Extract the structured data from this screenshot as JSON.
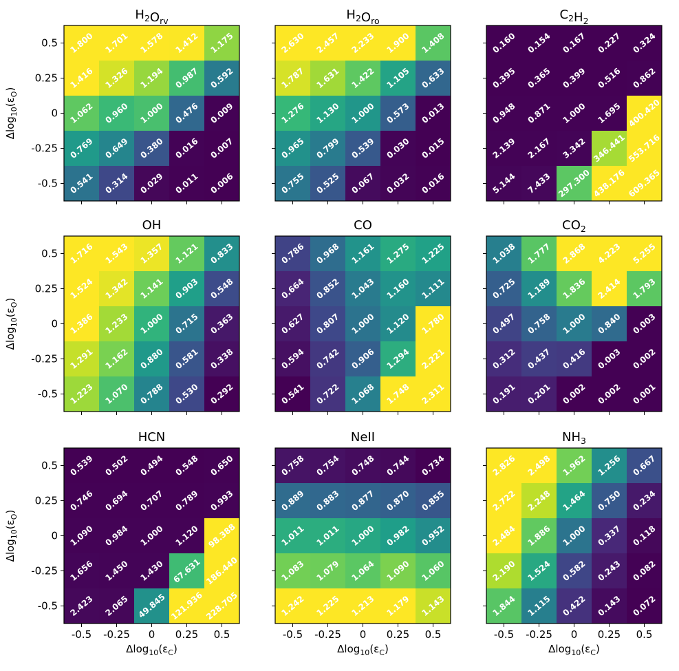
{
  "colormap": [
    "#440154",
    "#482878",
    "#3e4989",
    "#31688e",
    "#26828e",
    "#1f9e89",
    "#35b779",
    "#6ece58",
    "#b5de2b",
    "#fde725"
  ],
  "chart_data": [
    {
      "type": "heatmap",
      "title": {
        "base": "H",
        "sub1": "2",
        "mid": "O",
        "sub2": "rv"
      },
      "xlabel": "Δlog10(εC)",
      "ylabel": "Δlog10(εO)",
      "x_ticks": [
        "-0.5",
        "-0.25",
        "0",
        "0.25",
        "0.5"
      ],
      "y_ticks": [
        "0.5",
        "0.25",
        "0",
        "-0.25",
        "-0.5"
      ],
      "labels": [
        [
          "1.800",
          "1.701",
          "1.578",
          "1.412",
          "1.175"
        ],
        [
          "1.416",
          "1.326",
          "1.194",
          "0.987",
          "0.592"
        ],
        [
          "1.062",
          "0.960",
          "1.000",
          "0.476",
          "0.009"
        ],
        [
          "0.769",
          "0.649",
          "0.380",
          "0.016",
          "0.007"
        ],
        [
          "0.541",
          "0.314",
          "0.029",
          "0.011",
          "0.006"
        ]
      ]
    },
    {
      "type": "heatmap",
      "title": {
        "base": "H",
        "sub1": "2",
        "mid": "O",
        "sub2": "ro"
      },
      "xlabel": "Δlog10(εC)",
      "ylabel": "Δlog10(εO)",
      "x_ticks": [
        "-0.5",
        "-0.25",
        "0",
        "0.25",
        "0.5"
      ],
      "y_ticks": [
        "0.5",
        "0.25",
        "0",
        "-0.25",
        "-0.5"
      ],
      "labels": [
        [
          "2.630",
          "2.457",
          "2.233",
          "1.900",
          "1.408"
        ],
        [
          "1.787",
          "1.631",
          "1.422",
          "1.105",
          "0.633"
        ],
        [
          "1.276",
          "1.130",
          "1.000",
          "0.573",
          "0.013"
        ],
        [
          "0.965",
          "0.799",
          "0.539",
          "0.030",
          "0.015"
        ],
        [
          "0.755",
          "0.525",
          "0.067",
          "0.032",
          "0.016"
        ]
      ]
    },
    {
      "type": "heatmap",
      "title": {
        "base": "C",
        "sub1": "2",
        "mid": "H",
        "sub2": "2"
      },
      "xlabel": "Δlog10(εC)",
      "ylabel": "Δlog10(εO)",
      "x_ticks": [
        "-0.5",
        "-0.25",
        "0",
        "0.25",
        "0.5"
      ],
      "y_ticks": [
        "0.5",
        "0.25",
        "0",
        "-0.25",
        "-0.5"
      ],
      "labels": [
        [
          "0.160",
          "0.154",
          "0.167",
          "0.227",
          "0.324"
        ],
        [
          "0.395",
          "0.365",
          "0.399",
          "0.516",
          "0.862"
        ],
        [
          "0.948",
          "0.871",
          "1.000",
          "1.695",
          "400.420"
        ],
        [
          "2.139",
          "2.167",
          "3.342",
          "346.441",
          "553.716"
        ],
        [
          "5.144",
          "7.433",
          "297.300",
          "438.176",
          "609.365"
        ]
      ]
    },
    {
      "type": "heatmap",
      "title": {
        "base": "OH",
        "sub1": "",
        "mid": "",
        "sub2": ""
      },
      "xlabel": "Δlog10(εC)",
      "ylabel": "Δlog10(εO)",
      "x_ticks": [
        "-0.5",
        "-0.25",
        "0",
        "0.25",
        "0.5"
      ],
      "y_ticks": [
        "0.5",
        "0.25",
        "0",
        "-0.25",
        "-0.5"
      ],
      "labels": [
        [
          "1.716",
          "1.543",
          "1.357",
          "1.121",
          "0.833"
        ],
        [
          "1.524",
          "1.342",
          "1.141",
          "0.903",
          "0.548"
        ],
        [
          "1.386",
          "1.233",
          "1.000",
          "0.715",
          "0.363"
        ],
        [
          "1.291",
          "1.162",
          "0.880",
          "0.581",
          "0.338"
        ],
        [
          "1.223",
          "1.070",
          "0.788",
          "0.530",
          "0.292"
        ]
      ]
    },
    {
      "type": "heatmap",
      "title": {
        "base": "CO",
        "sub1": "",
        "mid": "",
        "sub2": ""
      },
      "xlabel": "Δlog10(εC)",
      "ylabel": "Δlog10(εO)",
      "x_ticks": [
        "-0.5",
        "-0.25",
        "0",
        "0.25",
        "0.5"
      ],
      "y_ticks": [
        "0.5",
        "0.25",
        "0",
        "-0.25",
        "-0.5"
      ],
      "labels": [
        [
          "0.786",
          "0.968",
          "1.161",
          "1.275",
          "1.225"
        ],
        [
          "0.664",
          "0.852",
          "1.043",
          "1.160",
          "1.111"
        ],
        [
          "0.627",
          "0.807",
          "1.000",
          "1.120",
          "1.780"
        ],
        [
          "0.594",
          "0.742",
          "0.906",
          "1.294",
          "2.221"
        ],
        [
          "0.541",
          "0.722",
          "1.068",
          "1.748",
          "2.311"
        ]
      ]
    },
    {
      "type": "heatmap",
      "title": {
        "base": "CO",
        "sub1": "2",
        "mid": "",
        "sub2": ""
      },
      "xlabel": "Δlog10(εC)",
      "ylabel": "Δlog10(εO)",
      "x_ticks": [
        "-0.5",
        "-0.25",
        "0",
        "0.25",
        "0.5"
      ],
      "y_ticks": [
        "0.5",
        "0.25",
        "0",
        "-0.25",
        "-0.5"
      ],
      "labels": [
        [
          "1.038",
          "1.777",
          "2.868",
          "4.223",
          "5.255"
        ],
        [
          "0.725",
          "1.189",
          "1.836",
          "2.414",
          "1.793"
        ],
        [
          "0.497",
          "0.758",
          "1.000",
          "0.840",
          "0.003"
        ],
        [
          "0.312",
          "0.437",
          "0.416",
          "0.003",
          "0.002"
        ],
        [
          "0.191",
          "0.201",
          "0.002",
          "0.002",
          "0.001"
        ]
      ]
    },
    {
      "type": "heatmap",
      "title": {
        "base": "HCN",
        "sub1": "",
        "mid": "",
        "sub2": ""
      },
      "xlabel": "Δlog10(εC)",
      "ylabel": "Δlog10(εO)",
      "x_ticks": [
        "-0.5",
        "-0.25",
        "0",
        "0.25",
        "0.5"
      ],
      "y_ticks": [
        "0.5",
        "0.25",
        "0",
        "-0.25",
        "-0.5"
      ],
      "labels": [
        [
          "0.539",
          "0.502",
          "0.494",
          "0.548",
          "0.650"
        ],
        [
          "0.746",
          "0.694",
          "0.707",
          "0.789",
          "0.993"
        ],
        [
          "1.090",
          "0.984",
          "1.000",
          "1.120",
          "98.388"
        ],
        [
          "1.656",
          "1.450",
          "1.430",
          "67.631",
          "186.440"
        ],
        [
          "2.423",
          "2.065",
          "49.845",
          "121.936",
          "228.705"
        ]
      ]
    },
    {
      "type": "heatmap",
      "title": {
        "base": "NeII",
        "sub1": "",
        "mid": "",
        "sub2": ""
      },
      "xlabel": "Δlog10(εC)",
      "ylabel": "Δlog10(εO)",
      "x_ticks": [
        "-0.5",
        "-0.25",
        "0",
        "0.25",
        "0.5"
      ],
      "y_ticks": [
        "0.5",
        "0.25",
        "0",
        "-0.25",
        "-0.5"
      ],
      "labels": [
        [
          "0.758",
          "0.754",
          "0.748",
          "0.744",
          "0.734"
        ],
        [
          "0.889",
          "0.883",
          "0.877",
          "0.870",
          "0.855"
        ],
        [
          "1.011",
          "1.011",
          "1.000",
          "0.982",
          "0.952"
        ],
        [
          "1.083",
          "1.079",
          "1.064",
          "1.090",
          "1.060"
        ],
        [
          "1.242",
          "1.225",
          "1.213",
          "1.179",
          "1.143"
        ]
      ]
    },
    {
      "type": "heatmap",
      "title": {
        "base": "NH",
        "sub1": "3",
        "mid": "",
        "sub2": ""
      },
      "xlabel": "Δlog10(εC)",
      "ylabel": "Δlog10(εO)",
      "x_ticks": [
        "-0.5",
        "-0.25",
        "0",
        "0.25",
        "0.5"
      ],
      "y_ticks": [
        "0.5",
        "0.25",
        "0",
        "-0.25",
        "-0.5"
      ],
      "labels": [
        [
          "2.826",
          "2.498",
          "1.962",
          "1.256",
          "0.667"
        ],
        [
          "2.722",
          "2.248",
          "1.464",
          "0.750",
          "0.234"
        ],
        [
          "2.484",
          "1.886",
          "1.000",
          "0.337",
          "0.118"
        ],
        [
          "2.190",
          "1.524",
          "0.582",
          "0.243",
          "0.082"
        ],
        [
          "1.844",
          "1.115",
          "0.422",
          "0.143",
          "0.072"
        ]
      ]
    }
  ]
}
